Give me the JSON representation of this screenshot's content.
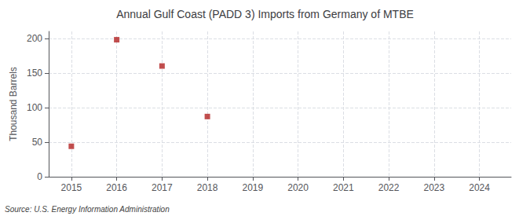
{
  "chart_data": {
    "type": "scatter",
    "title": "Annual Gulf Coast (PADD 3) Imports from Germany of MTBE",
    "ylabel": "Thousand Barrels",
    "annotations": [
      "Source: U.S. Energy Information Administration"
    ],
    "x": [
      2015,
      2016,
      2017,
      2018
    ],
    "values": [
      44,
      198,
      160,
      87
    ],
    "color": "#b22222",
    "marker": "square",
    "xlim": [
      2014.5,
      2024.7
    ],
    "xticks": [
      2015,
      2016,
      2017,
      2018,
      2019,
      2020,
      2021,
      2022,
      2023,
      2024
    ],
    "ylim": [
      0,
      210
    ],
    "yticks": [
      0,
      50,
      100,
      150,
      200
    ],
    "grid": true
  }
}
